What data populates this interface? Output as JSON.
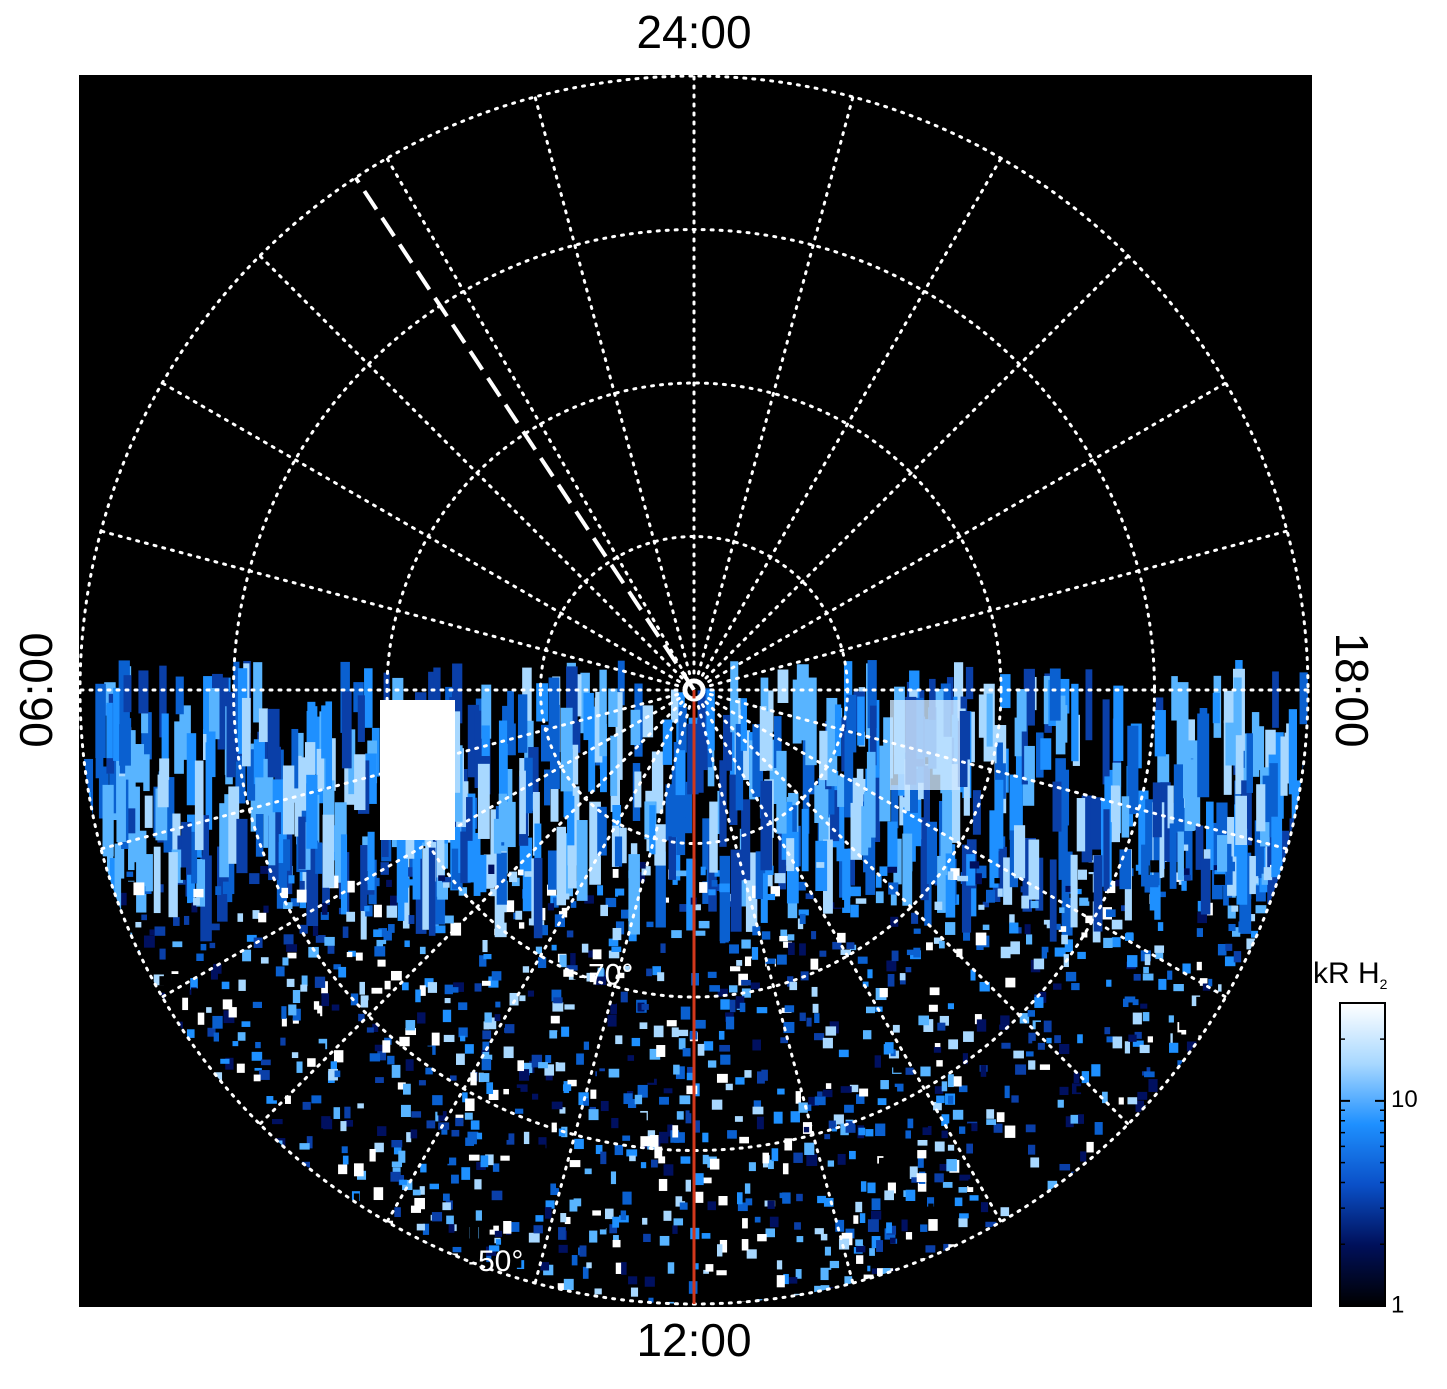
{
  "chart_data": {
    "type": "polar",
    "lat_lim": [
      -90,
      -50
    ],
    "lat_ticks": [
      -80,
      {
        "value": -70,
        "label": "-70°"
      },
      -60,
      {
        "value": -50,
        "label": "-50°"
      }
    ],
    "lt_ticks": [
      {
        "value": 0,
        "label": "24:00"
      },
      1,
      2,
      3,
      4,
      5,
      {
        "value": 6,
        "label": "06:00"
      },
      7,
      8,
      9,
      10,
      11,
      {
        "value": 12,
        "label": "12:00"
      },
      13,
      14,
      15,
      16,
      17,
      {
        "value": 18,
        "label": "18:00"
      },
      19,
      20,
      21,
      22,
      23
    ],
    "red_meridian_hour": 12,
    "red_color": "#d2381c",
    "dashed_meridian_hour": 2.23,
    "grid": true,
    "colorbar": {
      "label": "kR H",
      "label_sub": "2",
      "log": true,
      "lim": [
        1,
        30
      ],
      "ticks": [
        1,
        10
      ],
      "minor_ticks": [
        2,
        3,
        4,
        5,
        6,
        7,
        8,
        9,
        20,
        30
      ],
      "colors": [
        "#000000",
        "#00105a",
        "#0a50c8",
        "#1e90ff",
        "#a8d8ff",
        "#ffffff"
      ]
    }
  }
}
